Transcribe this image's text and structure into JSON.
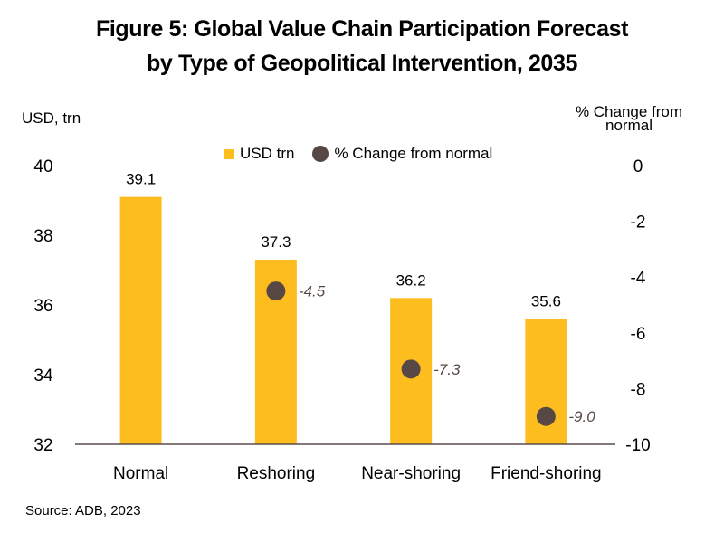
{
  "chart_data": {
    "type": "bar",
    "title": [
      "Figure 5: Global Value Chain Participation Forecast",
      "by Type of Geopolitical Intervention, 2035"
    ],
    "categories": [
      "Normal",
      "Reshoring",
      "Near-shoring",
      "Friend-shoring"
    ],
    "series": [
      {
        "name": "USD trn",
        "type": "bar",
        "axis": "left",
        "values": [
          39.1,
          37.3,
          36.2,
          35.6
        ],
        "labels": [
          "39.1",
          "37.3",
          "36.2",
          "35.6"
        ],
        "color": "#FDBD1E"
      },
      {
        "name": "% Change from normal",
        "type": "scatter",
        "axis": "right",
        "values": [
          null,
          -4.5,
          -7.3,
          -9.0
        ],
        "labels": [
          "",
          "-4.5",
          "-7.3",
          "-9.0"
        ],
        "color": "#574846"
      }
    ],
    "ylabel": "USD, trn",
    "y2label": [
      "% Change from",
      "normal"
    ],
    "ylim": [
      32,
      40
    ],
    "yticks": [
      "40",
      "38",
      "36",
      "34",
      "32"
    ],
    "y2lim": [
      -10,
      0
    ],
    "y2ticks": [
      "0",
      "-2",
      "-4",
      "-6",
      "-8",
      "-10"
    ],
    "legend": "top-center",
    "grid": false,
    "source": "Source: ADB, 2023"
  }
}
